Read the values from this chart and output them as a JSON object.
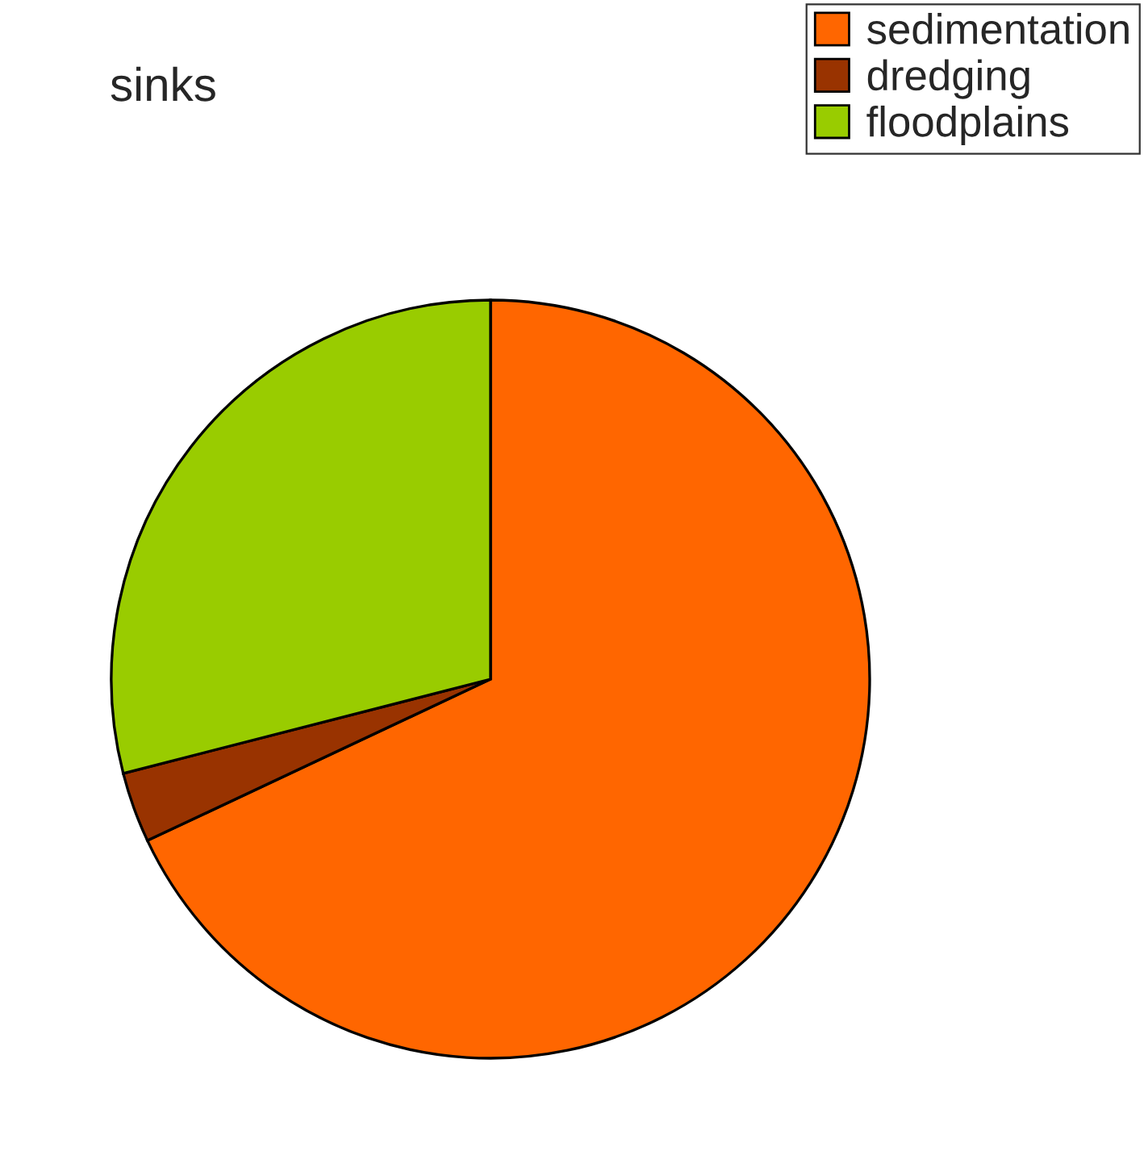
{
  "chart_data": {
    "type": "pie",
    "title": "sinks",
    "categories": [
      "sedimentation",
      "dredging",
      "floodplains"
    ],
    "values": [
      68,
      3,
      29
    ],
    "colors": [
      "#ff6600",
      "#993300",
      "#99cc00"
    ],
    "legend": "top right"
  }
}
